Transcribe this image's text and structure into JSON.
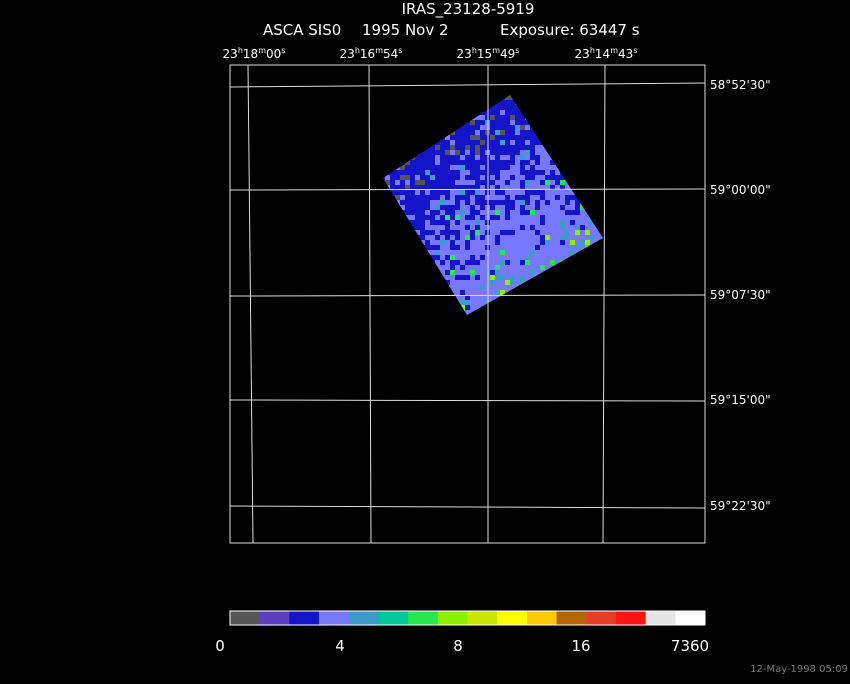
{
  "header": {
    "title": "IRAS_23128-5919",
    "instrument": "ASCA SIS0",
    "date": "1995 Nov  2",
    "exposure": "Exposure: 63447 s"
  },
  "ra_labels": [
    [
      "23",
      "h",
      "18",
      "m",
      "00",
      "s"
    ],
    [
      "23",
      "h",
      "16",
      "m",
      "54",
      "s"
    ],
    [
      "23",
      "h",
      "15",
      "m",
      "49",
      "s"
    ],
    [
      "23",
      "h",
      "14",
      "m",
      "43",
      "s"
    ]
  ],
  "dec_labels": [
    "58°52'30\"",
    "59°00'00\"",
    "59°07'30\"",
    "59°15'00\"",
    "59°22'30\""
  ],
  "colorbar": {
    "colors": [
      "#555555",
      "#5a3fc0",
      "#1414c8",
      "#7878ff",
      "#3c9bc8",
      "#00c896",
      "#28e650",
      "#8cf000",
      "#c8e600",
      "#ffff00",
      "#ffc800",
      "#b46400",
      "#e63c28",
      "#ff1414",
      "#e6e6e6",
      "#ffffff"
    ],
    "labels": [
      "0",
      "4",
      "8",
      "16",
      "7360"
    ]
  },
  "timestamp": "12-May-1998 05:09"
}
